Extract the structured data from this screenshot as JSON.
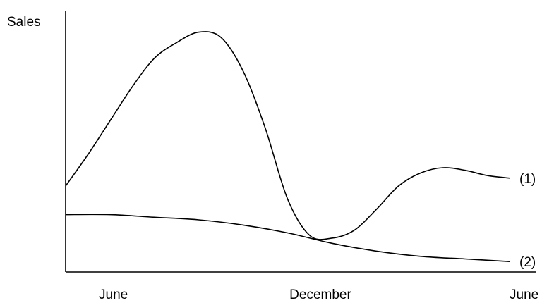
{
  "chart_data": {
    "type": "line",
    "title": "",
    "ylabel": "Sales",
    "xlabel": "",
    "x_tick_labels": [
      "June",
      "December",
      "June"
    ],
    "grid": false,
    "legend": "none",
    "series": [
      {
        "name": "(1)",
        "x": [
          0,
          0.05,
          0.1,
          0.15,
          0.2,
          0.25,
          0.3,
          0.35,
          0.4,
          0.45,
          0.5,
          0.55,
          0.6,
          0.65,
          0.7,
          0.75,
          0.8,
          0.85,
          0.9,
          0.95,
          1.0
        ],
        "y": [
          0.33,
          0.45,
          0.58,
          0.71,
          0.82,
          0.88,
          0.92,
          0.9,
          0.77,
          0.55,
          0.28,
          0.14,
          0.13,
          0.16,
          0.24,
          0.33,
          0.38,
          0.4,
          0.39,
          0.37,
          0.36
        ]
      },
      {
        "name": "(2)",
        "x": [
          0,
          0.1,
          0.2,
          0.3,
          0.4,
          0.5,
          0.6,
          0.7,
          0.8,
          0.9,
          1.0
        ],
        "y": [
          0.22,
          0.22,
          0.21,
          0.2,
          0.18,
          0.15,
          0.11,
          0.08,
          0.06,
          0.05,
          0.04
        ]
      }
    ]
  }
}
